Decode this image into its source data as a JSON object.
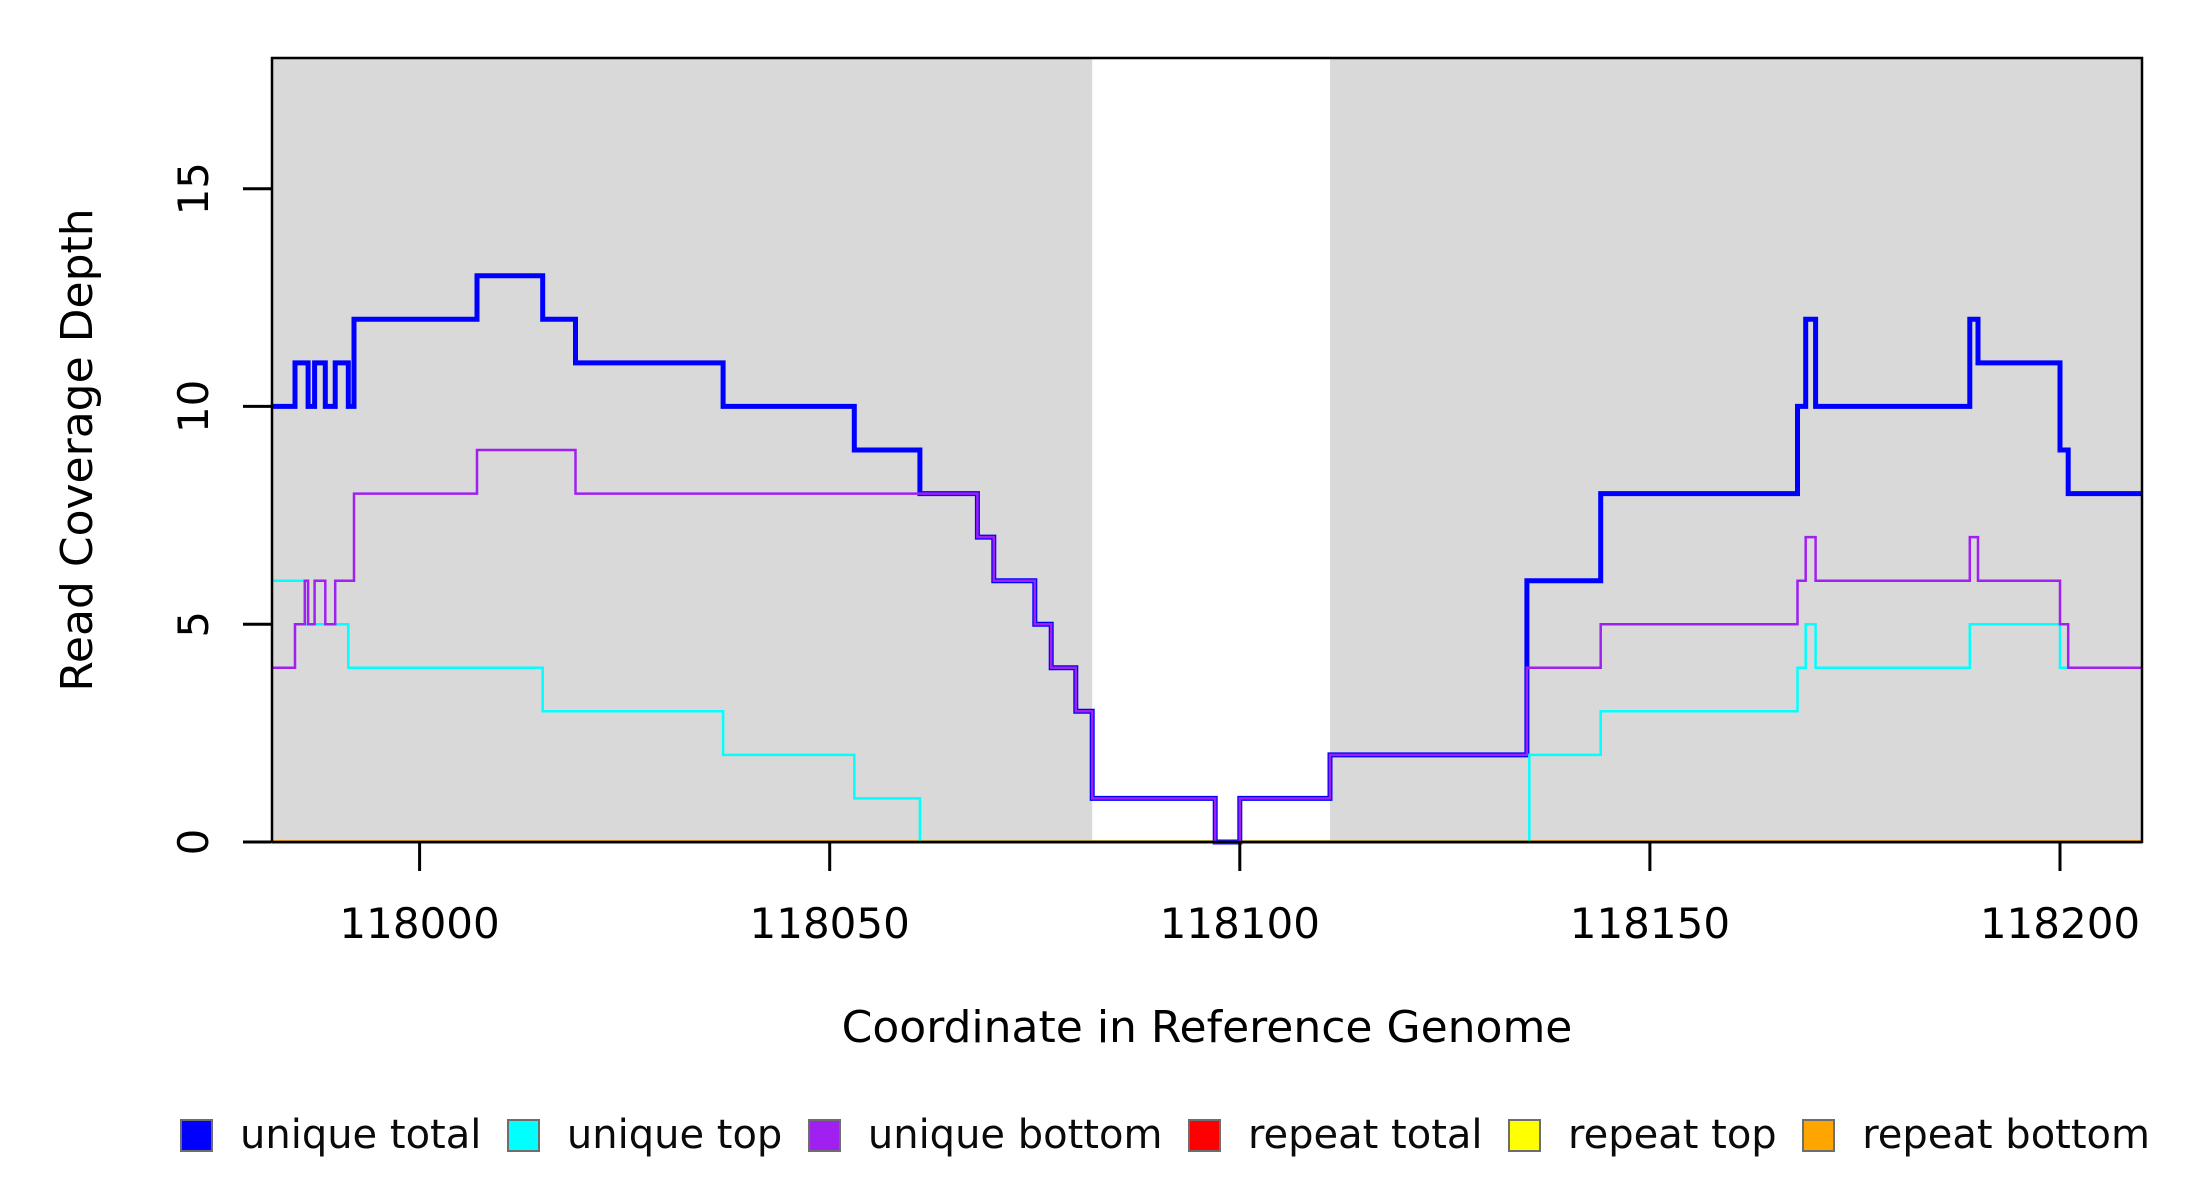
{
  "chart_data": {
    "type": "line",
    "subtype": "step-coverage-plot",
    "title": "",
    "xlabel": "Coordinate in Reference Genome",
    "ylabel": "Read Coverage Depth",
    "xlim": [
      117982,
      118210
    ],
    "ylim": [
      0,
      18
    ],
    "x_ticks": [
      118000,
      118050,
      118100,
      118150,
      118200
    ],
    "y_ticks": [
      0,
      5,
      10,
      15
    ],
    "grid": false,
    "plot_bg": "#ffffff",
    "band_color": "#d9d9d9",
    "axis_color": "#000000",
    "background_bands": [
      {
        "name": "contig-left",
        "x0": 117982,
        "x1": 118082
      },
      {
        "name": "contig-right",
        "x0": 118111,
        "x1": 118210
      }
    ],
    "gap_band": {
      "name": "assembly-gap",
      "x0": 118082,
      "x1": 118111
    },
    "series": [
      {
        "name": "unique total",
        "color": "#0000ff",
        "width": 5,
        "steps": [
          [
            117982,
            10
          ],
          [
            117984.8,
            11
          ],
          [
            117986.4,
            10
          ],
          [
            117987.2,
            11
          ],
          [
            117988.5,
            10
          ],
          [
            117989.7,
            11
          ],
          [
            117991.3,
            10
          ],
          [
            117992,
            12
          ],
          [
            118007,
            13
          ],
          [
            118015,
            12
          ],
          [
            118019,
            11
          ],
          [
            118037,
            10
          ],
          [
            118053,
            9
          ],
          [
            118061,
            8
          ],
          [
            118068,
            7
          ],
          [
            118070,
            6
          ],
          [
            118075,
            5
          ],
          [
            118077,
            4
          ],
          [
            118080,
            3
          ],
          [
            118082,
            1
          ],
          [
            118097,
            0
          ],
          [
            118100,
            1
          ],
          [
            118111,
            2
          ],
          [
            118135,
            6
          ],
          [
            118144,
            8
          ],
          [
            118168,
            10
          ],
          [
            118169,
            12
          ],
          [
            118170.2,
            10
          ],
          [
            118189,
            12
          ],
          [
            118190,
            11
          ],
          [
            118200,
            9
          ],
          [
            118201,
            8
          ]
        ]
      },
      {
        "name": "unique top",
        "color": "#00ffff",
        "width": 2.5,
        "steps": [
          [
            117982,
            6
          ],
          [
            117986,
            5
          ],
          [
            117991.3,
            4
          ],
          [
            118015,
            3
          ],
          [
            118037,
            2
          ],
          [
            118053,
            1
          ],
          [
            118061,
            0
          ],
          [
            118135.3,
            2
          ],
          [
            118144,
            3
          ],
          [
            118168,
            4
          ],
          [
            118169,
            5
          ],
          [
            118170.2,
            4
          ],
          [
            118189,
            5
          ],
          [
            118200,
            4
          ]
        ]
      },
      {
        "name": "unique bottom",
        "color": "#a020f0",
        "width": 2.5,
        "steps": [
          [
            117982,
            4
          ],
          [
            117984.8,
            5
          ],
          [
            117986,
            6
          ],
          [
            117986.4,
            5
          ],
          [
            117987.2,
            6
          ],
          [
            117988.5,
            5
          ],
          [
            117989.7,
            6
          ],
          [
            117992,
            8
          ],
          [
            118007,
            9
          ],
          [
            118019,
            8
          ],
          [
            118068,
            7
          ],
          [
            118070,
            6
          ],
          [
            118075,
            5
          ],
          [
            118077,
            4
          ],
          [
            118080,
            3
          ],
          [
            118082,
            1
          ],
          [
            118097,
            0
          ],
          [
            118100,
            1
          ],
          [
            118111,
            2
          ],
          [
            118135,
            4
          ],
          [
            118144,
            5
          ],
          [
            118168,
            6
          ],
          [
            118169,
            7
          ],
          [
            118170.2,
            6
          ],
          [
            118189,
            7
          ],
          [
            118190,
            6
          ],
          [
            118200,
            5
          ],
          [
            118201,
            4
          ]
        ]
      },
      {
        "name": "repeat total",
        "color": "#ff0000",
        "width": 3.5,
        "steps": [
          [
            117982,
            0
          ]
        ]
      },
      {
        "name": "repeat top",
        "color": "#ffff00",
        "width": 3.5,
        "steps": [
          [
            117982,
            0
          ]
        ]
      },
      {
        "name": "repeat bottom",
        "color": "#ffa500",
        "width": 3.5,
        "steps": [
          [
            117982,
            0
          ]
        ]
      }
    ],
    "draw_order": [
      3,
      4,
      5,
      0,
      1,
      2
    ],
    "legend": {
      "position": "bottom",
      "order": [
        0,
        1,
        2,
        3,
        4,
        5
      ]
    }
  }
}
